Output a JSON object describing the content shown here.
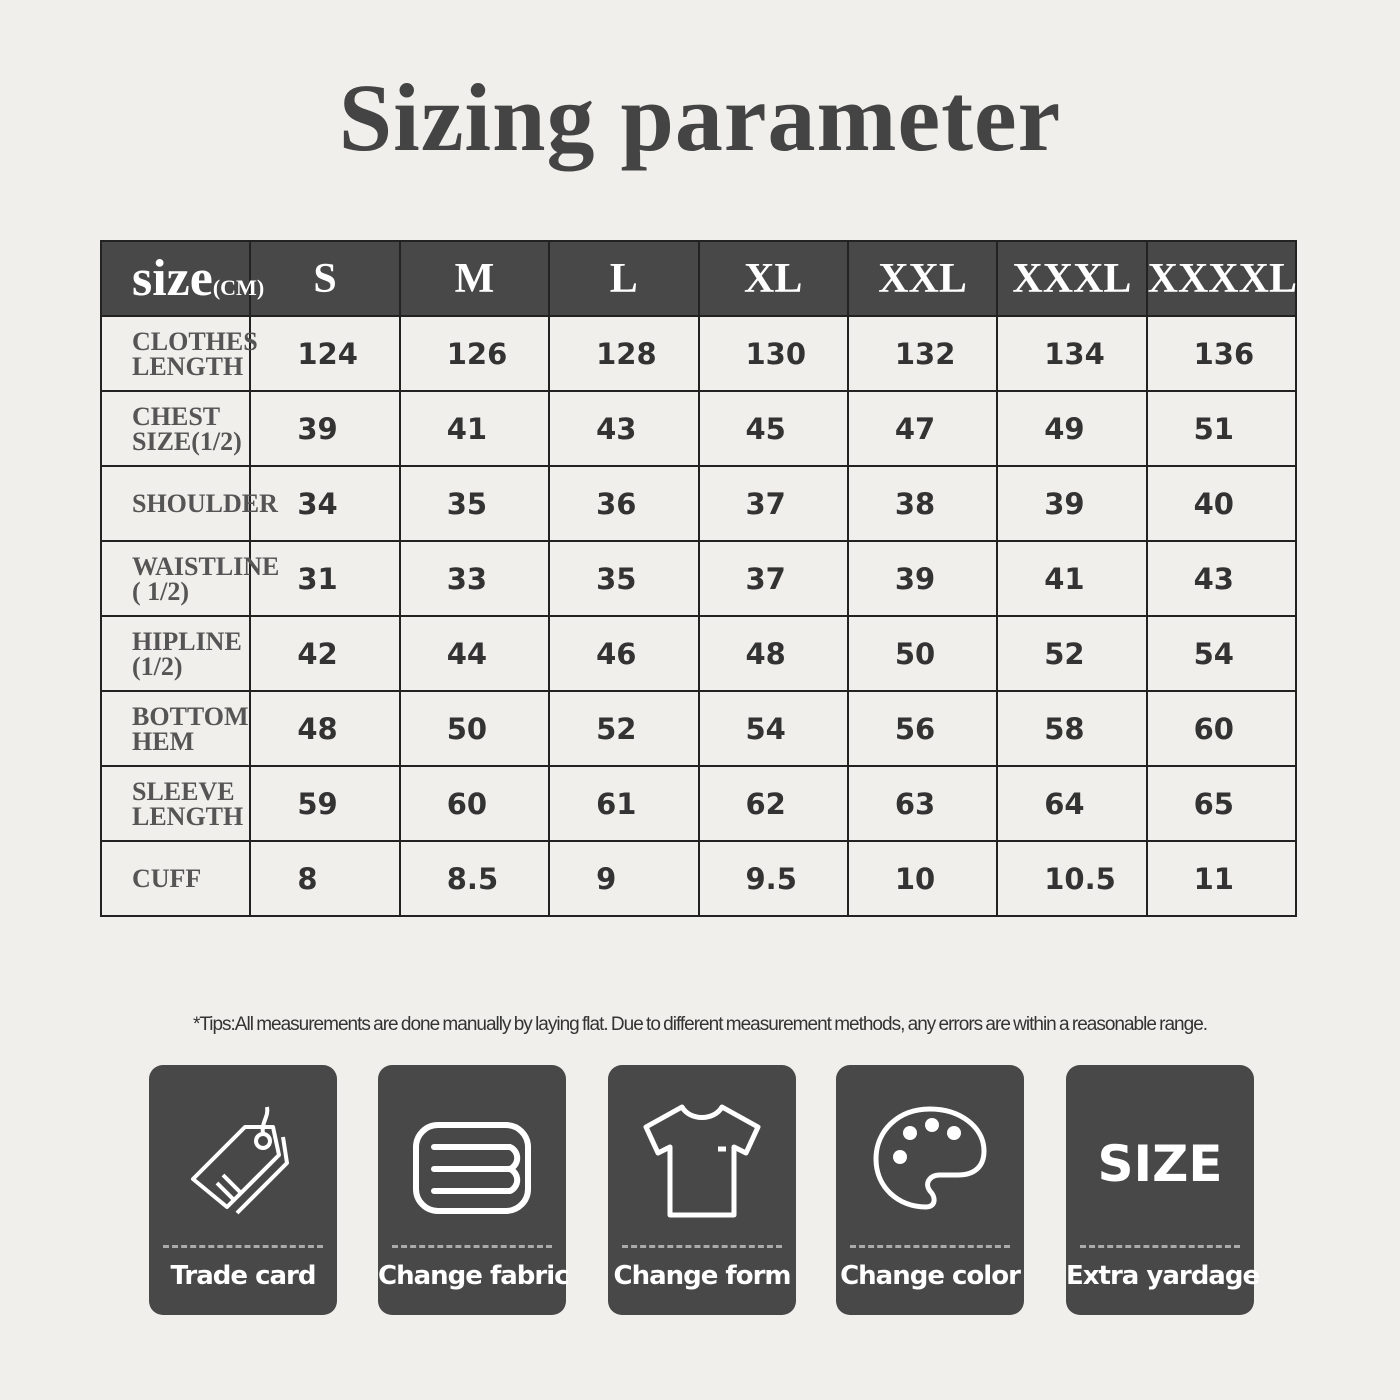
{
  "title": "Sizing parameter",
  "table": {
    "corner": {
      "main": "size",
      "unit": "(CM)"
    },
    "sizes": [
      "S",
      "M",
      "L",
      "XL",
      "XXL",
      "XXXL",
      "XXXXL"
    ],
    "rows": [
      {
        "label": "CLOTHES\nLENGTH",
        "values": [
          "124",
          "126",
          "128",
          "130",
          "132",
          "134",
          "136"
        ]
      },
      {
        "label": "CHEST\nSIZE(1/2)",
        "values": [
          "39",
          "41",
          "43",
          "45",
          "47",
          "49",
          "51"
        ]
      },
      {
        "label": "SHOULDER",
        "values": [
          "34",
          "35",
          "36",
          "37",
          "38",
          "39",
          "40"
        ]
      },
      {
        "label": "WAISTLINE\n( 1/2)",
        "values": [
          "31",
          "33",
          "35",
          "37",
          "39",
          "41",
          "43"
        ]
      },
      {
        "label": "HIPLINE\n(1/2)",
        "values": [
          "42",
          "44",
          "46",
          "48",
          "50",
          "52",
          "54"
        ]
      },
      {
        "label": "BOTTOM\nHEM",
        "values": [
          "48",
          "50",
          "52",
          "54",
          "56",
          "58",
          "60"
        ]
      },
      {
        "label": "SLEEVE\nLENGTH",
        "values": [
          "59",
          "60",
          "61",
          "62",
          "63",
          "64",
          "65"
        ]
      },
      {
        "label": "CUFF",
        "values": [
          "8",
          "8.5",
          "9",
          "9.5",
          "10",
          "10.5",
          "11"
        ]
      }
    ]
  },
  "tips": "*Tips:All measurements are done manually by laying flat. Due to different measurement methods, any errors are within a reasonable range.",
  "cards": [
    {
      "label": "Trade card",
      "icon": "tag-icon"
    },
    {
      "label": "Change fabric",
      "icon": "fabric-icon"
    },
    {
      "label": "Change form",
      "icon": "tshirt-icon"
    },
    {
      "label": "Change color",
      "icon": "palette-icon"
    },
    {
      "label": "Extra yardage",
      "icon": "size-icon",
      "icon_text": "SIZE"
    }
  ],
  "colors": {
    "background": "#f0efeb",
    "header": "#484848",
    "card": "#484848"
  }
}
